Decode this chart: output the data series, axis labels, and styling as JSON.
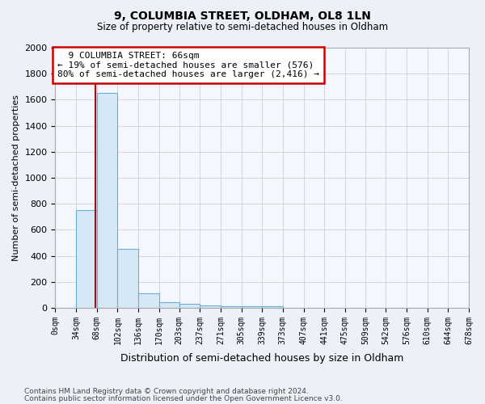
{
  "title": "9, COLUMBIA STREET, OLDHAM, OL8 1LN",
  "subtitle": "Size of property relative to semi-detached houses in Oldham",
  "xlabel": "Distribution of semi-detached houses by size in Oldham",
  "ylabel": "Number of semi-detached properties",
  "footnote1": "Contains HM Land Registry data © Crown copyright and database right 2024.",
  "footnote2": "Contains public sector information licensed under the Open Government Licence v3.0.",
  "annotation_title": "9 COLUMBIA STREET: 66sqm",
  "annotation_line1": "← 19% of semi-detached houses are smaller (576)",
  "annotation_line2": "80% of semi-detached houses are larger (2,416) →",
  "bar_edges": [
    0,
    34,
    68,
    102,
    136,
    170,
    203,
    237,
    271,
    305,
    339,
    373,
    407,
    441,
    475,
    509,
    542,
    576,
    610,
    644,
    678
  ],
  "bar_heights": [
    0,
    750,
    1650,
    450,
    110,
    45,
    30,
    20,
    15,
    10,
    10,
    0,
    0,
    0,
    0,
    0,
    0,
    0,
    0,
    0
  ],
  "bar_color": "#d6e8f5",
  "bar_edge_color": "#6aaed6",
  "red_line_x": 66,
  "ylim": [
    0,
    2000
  ],
  "background_color": "#eef0f8",
  "plot_bg_color": "#f5f7ff",
  "grid_color": "#d0d0d0"
}
